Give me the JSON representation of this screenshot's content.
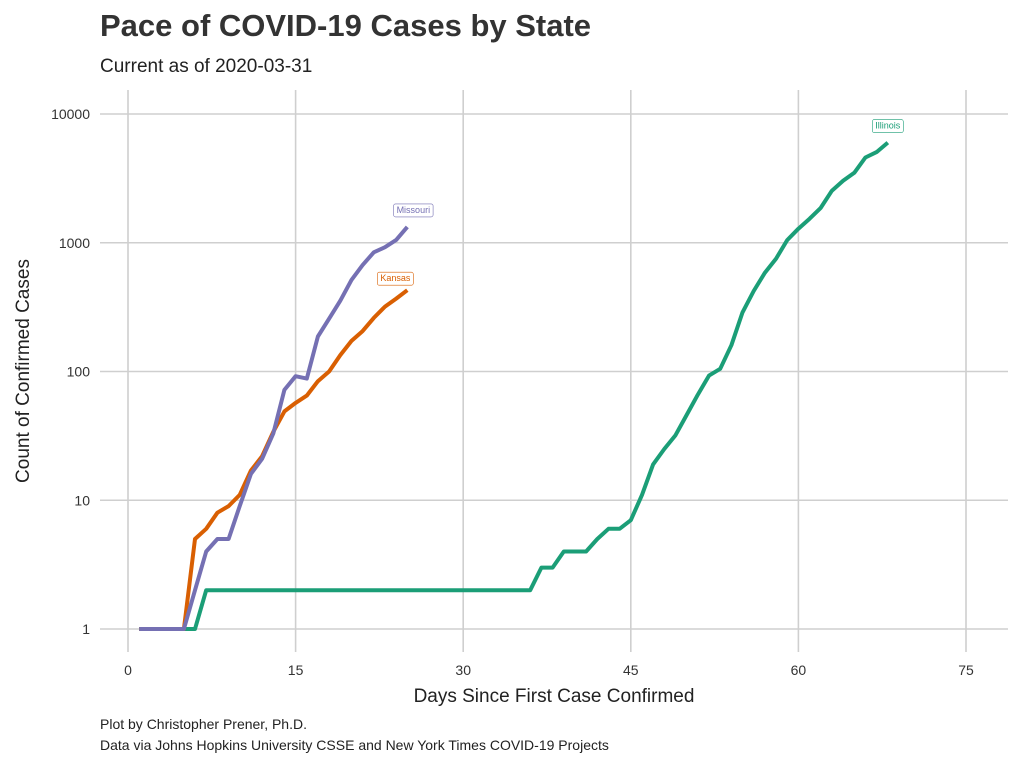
{
  "page": {
    "title": "Pace of COVID-19 Cases by State",
    "subtitle": "Current as of 2020-03-31",
    "caption_line1": "Plot by Christopher Prener, Ph.D.",
    "caption_line2": "Data via Johns Hopkins University CSSE and New York Times COVID-19 Projects"
  },
  "chart_data": {
    "type": "line",
    "title": "Pace of COVID-19 Cases by State",
    "subtitle": "Current as of 2020-03-31",
    "xlabel": "Days Since First Case Confirmed",
    "ylabel": "Count of Confirmed Cases",
    "xlim": [
      -1.5,
      76.5
    ],
    "ylim": [
      0.7,
      14000
    ],
    "x_ticks": [
      0,
      15,
      30,
      45,
      60,
      75
    ],
    "x_tick_labels": [
      "0",
      "15",
      "30",
      "45",
      "60",
      "75"
    ],
    "y_ticks": [
      1,
      10,
      100,
      1000,
      10000
    ],
    "y_tick_labels": [
      "1",
      "10",
      "100",
      "1000",
      "10000"
    ],
    "y_scale": "log10",
    "grid": true,
    "legend": "none (direct labels at line ends)",
    "series": [
      {
        "name": "Illinois",
        "color": "#1b9e77",
        "x": [
          1,
          2,
          3,
          4,
          5,
          6,
          7,
          8,
          9,
          10,
          11,
          12,
          13,
          14,
          15,
          16,
          17,
          18,
          19,
          20,
          21,
          22,
          23,
          24,
          25,
          26,
          27,
          28,
          29,
          30,
          31,
          32,
          33,
          34,
          35,
          36,
          37,
          38,
          39,
          40,
          41,
          42,
          43,
          44,
          45,
          46,
          47,
          48,
          49,
          50,
          51,
          52,
          53,
          54,
          55,
          56,
          57,
          58,
          59,
          60,
          61,
          62,
          63,
          64,
          65,
          66,
          67,
          68
        ],
        "y": [
          1,
          1,
          1,
          1,
          1,
          1,
          2,
          2,
          2,
          2,
          2,
          2,
          2,
          2,
          2,
          2,
          2,
          2,
          2,
          2,
          2,
          2,
          2,
          2,
          2,
          2,
          2,
          2,
          2,
          2,
          2,
          2,
          2,
          2,
          2,
          2,
          3,
          3,
          4,
          4,
          4,
          5,
          6,
          6,
          7,
          11,
          19,
          25,
          32,
          46,
          66,
          93,
          105,
          160,
          288,
          422,
          585,
          753,
          1049,
          1285,
          1537,
          1865,
          2538,
          3026,
          3491,
          4596,
          5057,
          5994
        ]
      },
      {
        "name": "Kansas",
        "color": "#d95f02",
        "x": [
          1,
          2,
          3,
          4,
          5,
          6,
          7,
          8,
          9,
          10,
          11,
          12,
          13,
          14,
          15,
          16,
          17,
          18,
          19,
          20,
          21,
          22,
          23,
          24,
          25
        ],
        "y": [
          1,
          1,
          1,
          1,
          1,
          5,
          6,
          8,
          9,
          11,
          17,
          22,
          34,
          49,
          57,
          65,
          84,
          100,
          134,
          173,
          206,
          261,
          319,
          368,
          428
        ]
      },
      {
        "name": "Missouri",
        "color": "#7570b3",
        "x": [
          1,
          2,
          3,
          4,
          5,
          6,
          7,
          8,
          9,
          10,
          11,
          12,
          13,
          14,
          15,
          16,
          17,
          18,
          19,
          20,
          21,
          22,
          23,
          24,
          25
        ],
        "y": [
          1,
          1,
          1,
          1,
          1,
          2,
          4,
          5,
          5,
          9,
          16,
          21,
          33,
          72,
          92,
          88,
          187,
          257,
          355,
          515,
          670,
          843,
          923,
          1053,
          1327
        ]
      }
    ],
    "annotations": [
      {
        "text": "Illinois",
        "series": "Illinois"
      },
      {
        "text": "Kansas",
        "series": "Kansas"
      },
      {
        "text": "Missouri",
        "series": "Missouri"
      }
    ]
  }
}
